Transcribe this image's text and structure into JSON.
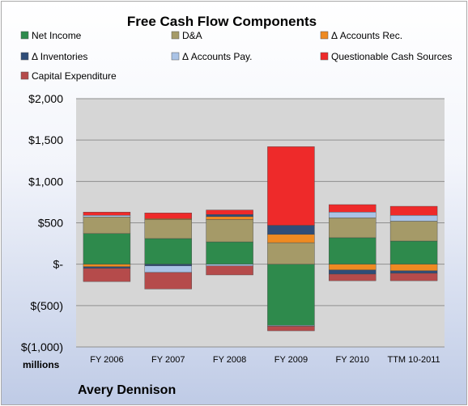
{
  "chart_data": {
    "type": "bar",
    "stacked": true,
    "title": "Free Cash Flow Components",
    "units_label": "millions",
    "company": "Avery Dennison",
    "categories": [
      "FY 2006",
      "FY 2007",
      "FY 2008",
      "FY 2009",
      "FY 2010",
      "TTM 10-2011"
    ],
    "ylim": [
      -1000,
      2000
    ],
    "yticks": [
      {
        "value": 2000,
        "label": "$2,000"
      },
      {
        "value": 1500,
        "label": "$1,500"
      },
      {
        "value": 1000,
        "label": "$1,000"
      },
      {
        "value": 500,
        "label": "$500"
      },
      {
        "value": 0,
        "label": "$-"
      },
      {
        "value": -500,
        "label": "$(500)"
      },
      {
        "value": -1000,
        "label": "$(1,000)"
      }
    ],
    "grid": true,
    "legend_position": "top",
    "series": [
      {
        "name": "Net Income",
        "color": "#2e8a4c",
        "values": [
          370,
          310,
          270,
          -740,
          320,
          280
        ]
      },
      {
        "name": "D&A",
        "color": "#a59a68",
        "values": [
          200,
          230,
          270,
          260,
          240,
          240
        ]
      },
      {
        "name": "Δ Accounts Rec.",
        "color": "#ee8a22",
        "values": [
          -30,
          10,
          35,
          100,
          -70,
          -80
        ]
      },
      {
        "name": "Δ Inventories",
        "color": "#2f4d78",
        "values": [
          -20,
          -20,
          25,
          110,
          -50,
          -30
        ]
      },
      {
        "name": "Δ Accounts Pay.",
        "color": "#aac3e6",
        "values": [
          20,
          -80,
          -20,
          -10,
          70,
          70
        ]
      },
      {
        "name": "Questionable Cash Sources",
        "color": "#ee2a2a",
        "values": [
          40,
          70,
          55,
          950,
          90,
          110
        ]
      },
      {
        "name": "Capital Expenditure",
        "color": "#b54b4b",
        "values": [
          -160,
          -200,
          -110,
          -55,
          -80,
          -90
        ]
      }
    ]
  }
}
